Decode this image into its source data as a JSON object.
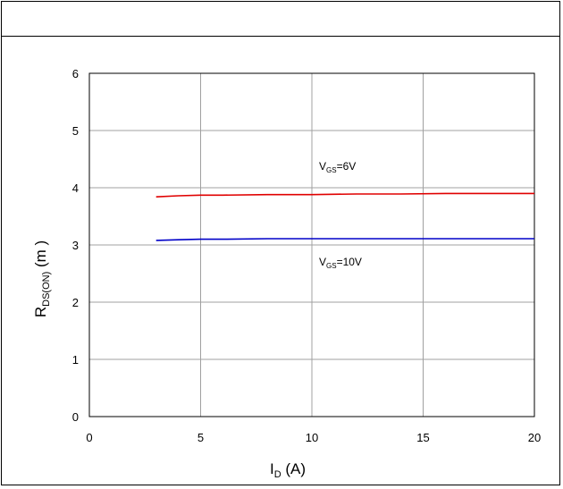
{
  "chart_data": {
    "type": "line",
    "title": "",
    "xlabel_main": "I",
    "xlabel_sub": "D",
    "xlabel_unit": " (A)",
    "ylabel_main": "R",
    "ylabel_sub": "DS(ON)",
    "ylabel_unit": " (m  )",
    "xlim": [
      0,
      20
    ],
    "ylim": [
      0,
      6
    ],
    "xticks": [
      "0",
      "5",
      "10",
      "15",
      "20"
    ],
    "yticks": [
      "0",
      "1",
      "2",
      "3",
      "4",
      "5",
      "6"
    ],
    "grid": true,
    "series": [
      {
        "name_main": "V",
        "name_sub": "GS",
        "name_rest": "=6V",
        "color": "#e00000",
        "x": [
          3,
          4,
          5,
          6,
          8,
          10,
          12,
          14,
          16,
          18,
          20
        ],
        "y": [
          3.84,
          3.86,
          3.87,
          3.87,
          3.88,
          3.88,
          3.89,
          3.89,
          3.9,
          3.9,
          3.9
        ]
      },
      {
        "name_main": "V",
        "name_sub": "GS",
        "name_rest": "=10V",
        "color": "#0000c8",
        "x": [
          3,
          4,
          5,
          6,
          8,
          10,
          12,
          14,
          16,
          18,
          20
        ],
        "y": [
          3.08,
          3.09,
          3.1,
          3.1,
          3.11,
          3.11,
          3.11,
          3.11,
          3.11,
          3.11,
          3.11
        ]
      }
    ]
  }
}
